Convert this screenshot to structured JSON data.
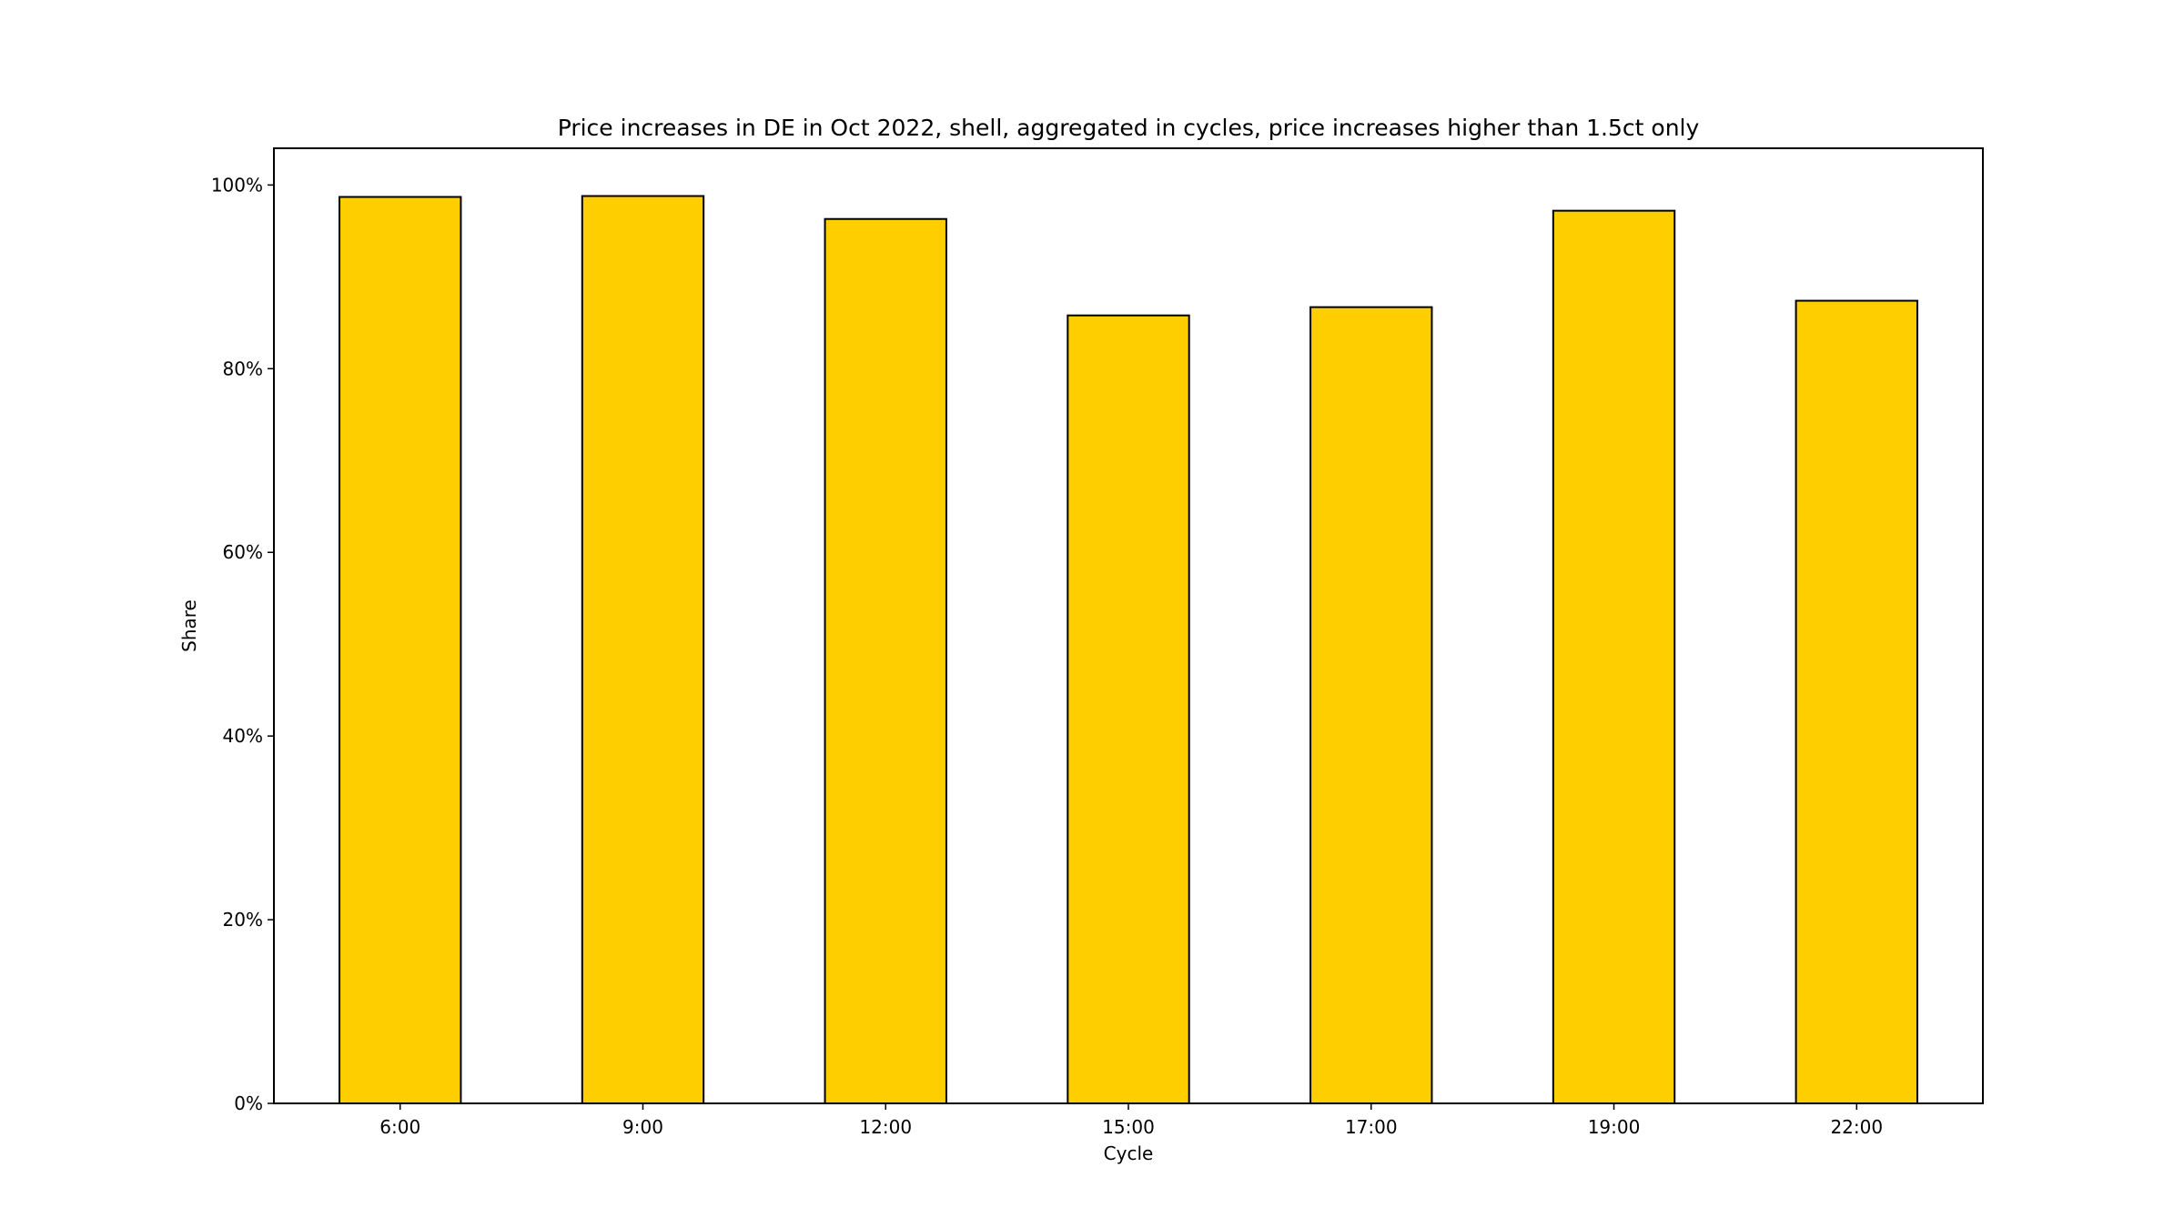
{
  "chart_data": {
    "type": "bar",
    "title": "Price increases in DE in Oct 2022, shell, aggregated in cycles, price increases higher than 1.5ct only",
    "xlabel": "Cycle",
    "ylabel": "Share",
    "categories": [
      "6:00",
      "9:00",
      "12:00",
      "15:00",
      "17:00",
      "19:00",
      "22:00"
    ],
    "values": [
      0.987,
      0.988,
      0.963,
      0.858,
      0.867,
      0.972,
      0.874
    ],
    "ylim": [
      0,
      1.04
    ],
    "yticks": [
      0,
      0.2,
      0.4,
      0.6,
      0.8,
      1.0
    ],
    "ytick_labels": [
      "0%",
      "20%",
      "40%",
      "60%",
      "80%",
      "100%"
    ],
    "bar_color": "#FFCE00",
    "edge_color": "#000000",
    "grid": false,
    "legend": "none"
  }
}
